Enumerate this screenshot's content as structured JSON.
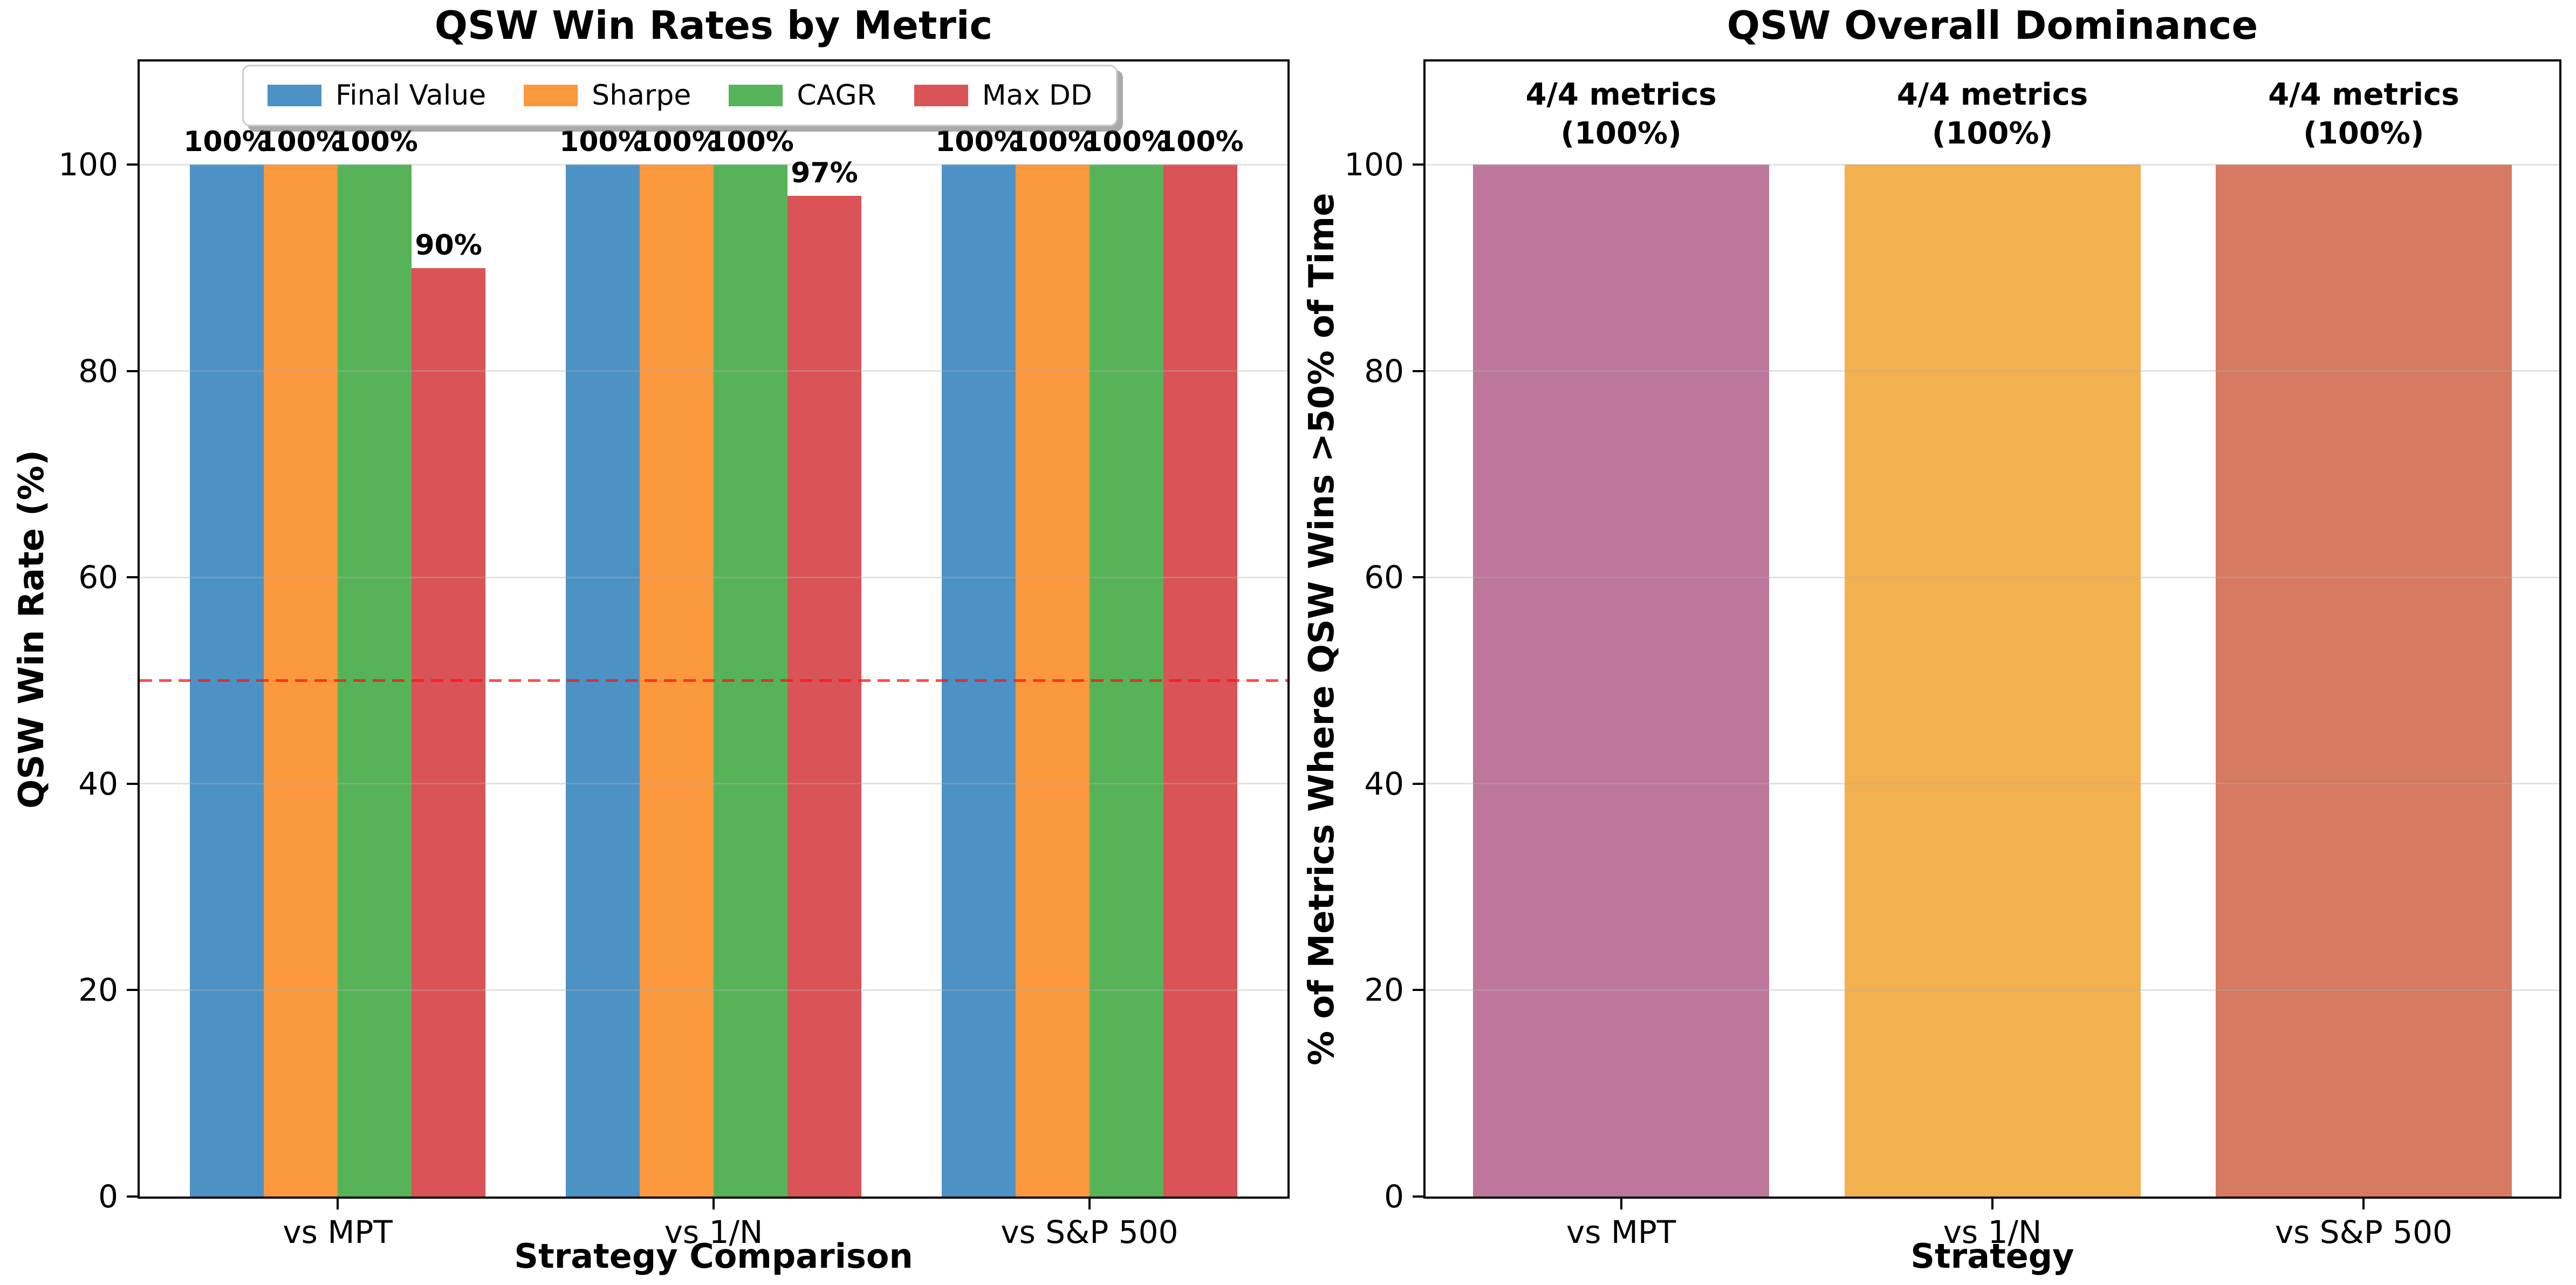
{
  "figure": {
    "background": "#ffffff",
    "grid_color": "#b0b0b0"
  },
  "chart_data": [
    {
      "type": "bar",
      "title": "QSW Win Rates by Metric",
      "xlabel": "Strategy Comparison",
      "ylabel": "QSW Win Rate (%)",
      "categories": [
        "vs MPT",
        "vs 1/N",
        "vs S&P 500"
      ],
      "series": [
        {
          "name": "Final Value",
          "color": "#4C92C4",
          "values": [
            100,
            100,
            100
          ],
          "labels": [
            "100%",
            "100%",
            "100%"
          ]
        },
        {
          "name": "Sharpe",
          "color": "#FC983E",
          "values": [
            100,
            100,
            100
          ],
          "labels": [
            "100%",
            "100%",
            "100%"
          ]
        },
        {
          "name": "CAGR",
          "color": "#57B357",
          "values": [
            100,
            100,
            100
          ],
          "labels": [
            "100%",
            "100%",
            "100%"
          ]
        },
        {
          "name": "Max DD",
          "color": "#DA5356",
          "values": [
            90,
            97,
            100
          ],
          "labels": [
            "90%",
            "97%",
            "100%"
          ]
        }
      ],
      "ylim": [
        0,
        110
      ],
      "yticks": [
        0,
        20,
        40,
        60,
        80,
        100
      ],
      "grid": true,
      "legend_position": "upper-left-inside",
      "reference_line": {
        "y": 50,
        "color": "#FF1212",
        "style": "dashed",
        "alpha": 0.75
      }
    },
    {
      "type": "bar",
      "title": "QSW Overall Dominance",
      "xlabel": "Strategy",
      "ylabel": "% of Metrics Where QSW Wins >50% of Time",
      "categories": [
        "vs MPT",
        "vs 1/N",
        "vs S&P 500"
      ],
      "values": [
        100,
        100,
        100
      ],
      "bar_colors": [
        "#BC779A",
        "#F3B04E",
        "#D67A61"
      ],
      "bar_annotations": [
        {
          "line1": "4/4 metrics",
          "line2": "(100%)"
        },
        {
          "line1": "4/4 metrics",
          "line2": "(100%)"
        },
        {
          "line1": "4/4 metrics",
          "line2": "(100%)"
        }
      ],
      "ylim": [
        0,
        110
      ],
      "yticks": [
        0,
        20,
        40,
        60,
        80,
        100
      ],
      "grid": true
    }
  ]
}
